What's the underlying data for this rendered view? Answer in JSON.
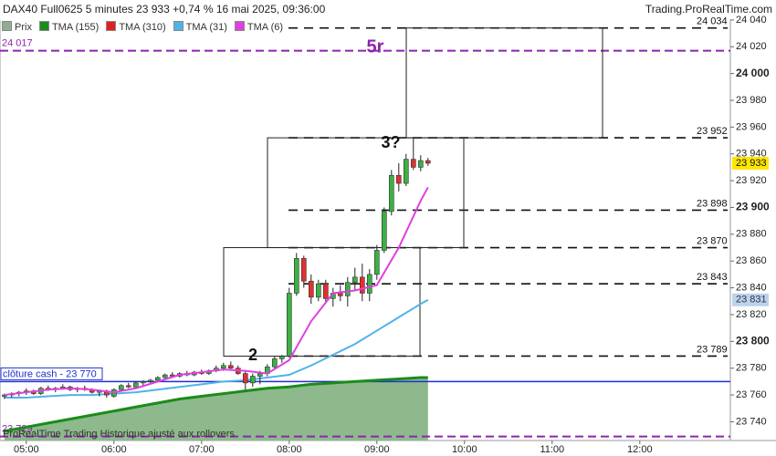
{
  "chart_data": {
    "type": "candlestick",
    "title": "DAX40 Full0625 5 minutes 23 933 +0,74 % 16 mai 2025, 09:36:00",
    "source": "Trading.ProRealTime.com",
    "footer": "ProRealTime Trading  Historique ajusté aux rollovers",
    "price_name": "Prix",
    "price_color": "#8fae8f",
    "up_color": "#3cb043",
    "down_color": "#e03030",
    "xlim": [
      282,
      782
    ],
    "ylim": [
      23726,
      24044
    ],
    "xticks": [
      {
        "value": 300,
        "label": "05:00"
      },
      {
        "value": 360,
        "label": "06:00"
      },
      {
        "value": 420,
        "label": "07:00"
      },
      {
        "value": 480,
        "label": "08:00"
      },
      {
        "value": 540,
        "label": "09:00"
      },
      {
        "value": 600,
        "label": "10:00"
      },
      {
        "value": 660,
        "label": "11:00"
      },
      {
        "value": 720,
        "label": "12:00"
      }
    ],
    "yticks": [
      {
        "value": 24040,
        "label": "24 040"
      },
      {
        "value": 24020,
        "label": "24 020"
      },
      {
        "value": 24000,
        "label": "24 000"
      },
      {
        "value": 23980,
        "label": "23 980"
      },
      {
        "value": 23960,
        "label": "23 960"
      },
      {
        "value": 23940,
        "label": "23 940"
      },
      {
        "value": 23920,
        "label": "23 920"
      },
      {
        "value": 23900,
        "label": "23 900"
      },
      {
        "value": 23880,
        "label": "23 880"
      },
      {
        "value": 23860,
        "label": "23 860"
      },
      {
        "value": 23840,
        "label": "23 840"
      },
      {
        "value": 23820,
        "label": "23 820"
      },
      {
        "value": 23800,
        "label": "23 800"
      },
      {
        "value": 23780,
        "label": "23 780"
      },
      {
        "value": 23760,
        "label": "23 760"
      },
      {
        "value": 23740,
        "label": "23 740"
      }
    ],
    "x": [
      285,
      290,
      295,
      300,
      305,
      310,
      315,
      320,
      325,
      330,
      335,
      340,
      345,
      350,
      355,
      360,
      365,
      370,
      375,
      380,
      385,
      390,
      395,
      400,
      405,
      410,
      415,
      420,
      425,
      430,
      435,
      440,
      445,
      450,
      455,
      460,
      465,
      470,
      475,
      480,
      485,
      490,
      495,
      500,
      505,
      510,
      515,
      520,
      525,
      530,
      535,
      540,
      545,
      550,
      555,
      560,
      565,
      570,
      575
    ],
    "ohlc": [
      [
        23759,
        23761,
        23757,
        23760
      ],
      [
        23760,
        23762,
        23758,
        23761
      ],
      [
        23761,
        23763,
        23759,
        23762
      ],
      [
        23762,
        23765,
        23760,
        23763
      ],
      [
        23763,
        23764,
        23760,
        23761
      ],
      [
        23761,
        23766,
        23760,
        23765
      ],
      [
        23765,
        23767,
        23763,
        23764
      ],
      [
        23764,
        23766,
        23762,
        23765
      ],
      [
        23765,
        23768,
        23764,
        23766
      ],
      [
        23766,
        23767,
        23763,
        23764
      ],
      [
        23764,
        23766,
        23762,
        23765
      ],
      [
        23765,
        23767,
        23763,
        23764
      ],
      [
        23764,
        23765,
        23761,
        23762
      ],
      [
        23762,
        23764,
        23759,
        23763
      ],
      [
        23763,
        23764,
        23758,
        23760
      ],
      [
        23759,
        23765,
        23758,
        23764
      ],
      [
        23764,
        23768,
        23763,
        23767
      ],
      [
        23767,
        23769,
        23765,
        23766
      ],
      [
        23766,
        23770,
        23765,
        23769
      ],
      [
        23769,
        23771,
        23767,
        23770
      ],
      [
        23770,
        23772,
        23768,
        23771
      ],
      [
        23771,
        23774,
        23770,
        23773
      ],
      [
        23773,
        23776,
        23772,
        23775
      ],
      [
        23775,
        23777,
        23773,
        23774
      ],
      [
        23774,
        23777,
        23773,
        23776
      ],
      [
        23776,
        23778,
        23774,
        23775
      ],
      [
        23775,
        23778,
        23774,
        23777
      ],
      [
        23777,
        23779,
        23775,
        23776
      ],
      [
        23776,
        23779,
        23775,
        23778
      ],
      [
        23778,
        23782,
        23777,
        23780
      ],
      [
        23780,
        23784,
        23778,
        23782
      ],
      [
        23782,
        23785,
        23779,
        23780
      ],
      [
        23780,
        23782,
        23775,
        23776
      ],
      [
        23776,
        23778,
        23764,
        23769
      ],
      [
        23769,
        23776,
        23766,
        23774
      ],
      [
        23774,
        23778,
        23768,
        23776
      ],
      [
        23776,
        23783,
        23774,
        23781
      ],
      [
        23781,
        23789,
        23779,
        23787
      ],
      [
        23787,
        23790,
        23784,
        23789
      ],
      [
        23789,
        23840,
        23788,
        23836
      ],
      [
        23836,
        23866,
        23834,
        23862
      ],
      [
        23862,
        23864,
        23840,
        23845
      ],
      [
        23845,
        23850,
        23828,
        23833
      ],
      [
        23833,
        23846,
        23830,
        23843
      ],
      [
        23843,
        23846,
        23828,
        23832
      ],
      [
        23832,
        23840,
        23826,
        23836
      ],
      [
        23836,
        23842,
        23830,
        23834
      ],
      [
        23834,
        23848,
        23826,
        23844
      ],
      [
        23844,
        23855,
        23838,
        23848
      ],
      [
        23848,
        23858,
        23830,
        23836
      ],
      [
        23836,
        23854,
        23830,
        23850
      ],
      [
        23850,
        23872,
        23846,
        23868
      ],
      [
        23868,
        23900,
        23866,
        23897
      ],
      [
        23897,
        23928,
        23894,
        23924
      ],
      [
        23924,
        23933,
        23912,
        23918
      ],
      [
        23918,
        23940,
        23916,
        23936
      ],
      [
        23936,
        23952,
        23928,
        23930
      ],
      [
        23930,
        23939,
        23927,
        23935
      ],
      [
        23935,
        23937,
        23931,
        23933
      ]
    ],
    "series": [
      {
        "name": "TMA (155)",
        "color": "#1a8c1a",
        "area_color": "#8db98d",
        "x": [
          285,
          300,
          315,
          330,
          345,
          360,
          375,
          390,
          405,
          420,
          435,
          450,
          465,
          480,
          495,
          510,
          525,
          540,
          555,
          570,
          575
        ],
        "values": [
          23733,
          23736,
          23739,
          23742,
          23745,
          23748,
          23751,
          23754,
          23757,
          23759,
          23761,
          23763,
          23765,
          23766,
          23768,
          23769,
          23770,
          23771,
          23772,
          23773,
          23773
        ]
      },
      {
        "name": "TMA (310)",
        "color": "#e02020"
      },
      {
        "name": "TMA (31)",
        "color": "#4fb3e8",
        "x": [
          285,
          300,
          315,
          330,
          345,
          360,
          375,
          390,
          405,
          420,
          435,
          450,
          465,
          480,
          495,
          510,
          525,
          540,
          555,
          570,
          575
        ],
        "values": [
          23758,
          23758,
          23759,
          23760,
          23760,
          23761,
          23762,
          23764,
          23766,
          23768,
          23770,
          23771,
          23773,
          23775,
          23782,
          23790,
          23798,
          23808,
          23818,
          23828,
          23831
        ]
      },
      {
        "name": "TMA (6)",
        "color": "#e040e0",
        "x": [
          285,
          300,
          315,
          330,
          345,
          360,
          375,
          390,
          405,
          420,
          435,
          450,
          465,
          480,
          495,
          510,
          525,
          540,
          555,
          570,
          575
        ],
        "values": [
          23760,
          23762,
          23764,
          23765,
          23764,
          23762,
          23765,
          23770,
          23775,
          23777,
          23779,
          23778,
          23776,
          23786,
          23815,
          23836,
          23838,
          23842,
          23870,
          23905,
          23915
        ]
      }
    ],
    "levels": [
      {
        "value": 24034,
        "label": "24 034"
      },
      {
        "value": 23952,
        "label": "23 952"
      },
      {
        "value": 23898,
        "label": "23 898"
      },
      {
        "value": 23870,
        "label": "23 870"
      },
      {
        "value": 23843,
        "label": "23 843"
      },
      {
        "value": 23789,
        "label": "23 789"
      }
    ],
    "purple_levels": [
      {
        "value": 24017,
        "label": "24 017"
      },
      {
        "value": 23729,
        "label": "23 729"
      }
    ],
    "purple_color": "#8e24aa",
    "cash_line": {
      "value": 23770,
      "label": "clôture cash -  23 770",
      "color": "#1f2fd0"
    },
    "last_price": {
      "value": 23933,
      "label": "23 933",
      "color": "#ffe600"
    },
    "tma_tag": {
      "value": 23831,
      "label": "23 831",
      "color": "#bcd3ea"
    },
    "annotations": [
      "2",
      "3?",
      "5r"
    ]
  }
}
